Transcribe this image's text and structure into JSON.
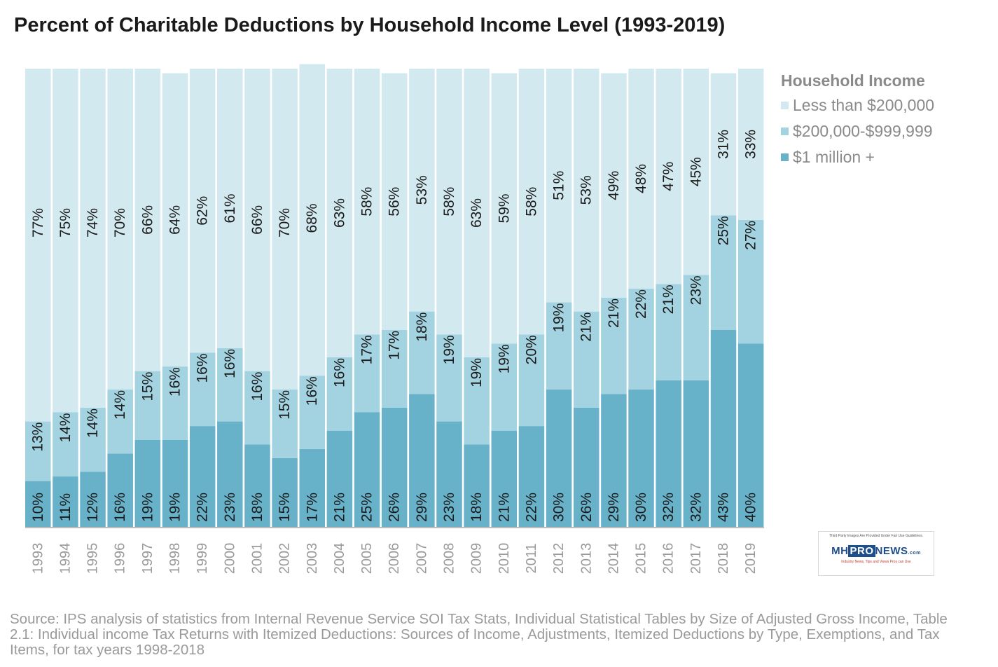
{
  "chart_data": {
    "type": "bar",
    "stacked": true,
    "title": "Percent of Charitable Deductions by Household Income Level (1993-2019)",
    "categories": [
      "1993",
      "1994",
      "1995",
      "1996",
      "1997",
      "1998",
      "1999",
      "2000",
      "2001",
      "2002",
      "2003",
      "2004",
      "2005",
      "2006",
      "2007",
      "2008",
      "2009",
      "2010",
      "2011",
      "2012",
      "2013",
      "2014",
      "2015",
      "2016",
      "2017",
      "2018",
      "2019"
    ],
    "legend_title": "Household Income",
    "legend_position": "right",
    "ylim": [
      0,
      100
    ],
    "grid": false,
    "series": [
      {
        "name": "$1 million +",
        "color": "#67b1c9",
        "values": [
          10,
          11,
          12,
          16,
          19,
          19,
          22,
          23,
          18,
          15,
          17,
          21,
          25,
          26,
          29,
          23,
          18,
          21,
          22,
          30,
          26,
          29,
          30,
          32,
          32,
          43,
          40
        ]
      },
      {
        "name": "$200,000-$999,999",
        "color": "#a3d2e0",
        "values": [
          13,
          14,
          14,
          14,
          15,
          16,
          16,
          16,
          16,
          15,
          16,
          16,
          17,
          17,
          18,
          19,
          19,
          19,
          20,
          19,
          21,
          21,
          22,
          21,
          23,
          25,
          27
        ]
      },
      {
        "name": "Less than $200,000",
        "color": "#d3e9f0",
        "values": [
          77,
          75,
          74,
          70,
          66,
          64,
          62,
          61,
          66,
          70,
          68,
          63,
          58,
          56,
          53,
          58,
          63,
          59,
          58,
          51,
          53,
          49,
          48,
          47,
          45,
          31,
          33
        ]
      }
    ]
  },
  "source_text": "Source: IPS analysis of statistics from Internal Revenue Service SOI Tax Stats, Individual Statistical Tables by Size of Adjusted Gross Income, Table 2.1: Individual income Tax Returns with Itemized Deductions: Sources of Income, Adjustments, Itemized Deductions by Type, Exemptions, and Tax Items, for tax years 1998-2018",
  "badge": {
    "notice": "Third Party Images Are Provided Under Fair Use Guidelines.",
    "logo_mh": "MH",
    "logo_pro": "PRO",
    "logo_news": "NEWS",
    "logo_com": ".com",
    "tagline": "Industry News, Tips and Views Pros can Use"
  }
}
